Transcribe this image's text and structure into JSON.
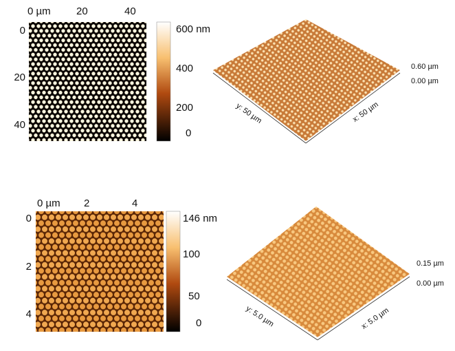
{
  "panels": [
    {
      "map": {
        "xticks": [
          "0 µm",
          "20",
          "40"
        ],
        "yticks": [
          "0",
          "20",
          "40"
        ],
        "colorbar": [
          "600 nm",
          "400",
          "200",
          "0"
        ]
      },
      "view3d": {
        "z_labels": [
          "0.60 µm",
          "0.00 µm"
        ],
        "y_label": "y: 50 µm",
        "x_label": "x: 50 µm"
      }
    },
    {
      "map": {
        "xticks": [
          "0 µm",
          "2",
          "4"
        ],
        "yticks": [
          "0",
          "2",
          "4"
        ],
        "colorbar": [
          "146 nm",
          "100",
          "50",
          "0"
        ]
      },
      "view3d": {
        "z_labels": [
          "0.15 µm",
          "0.00 µm"
        ],
        "y_label": "y: 5.0 µm",
        "x_label": "x: 5.0 µm"
      }
    }
  ]
}
